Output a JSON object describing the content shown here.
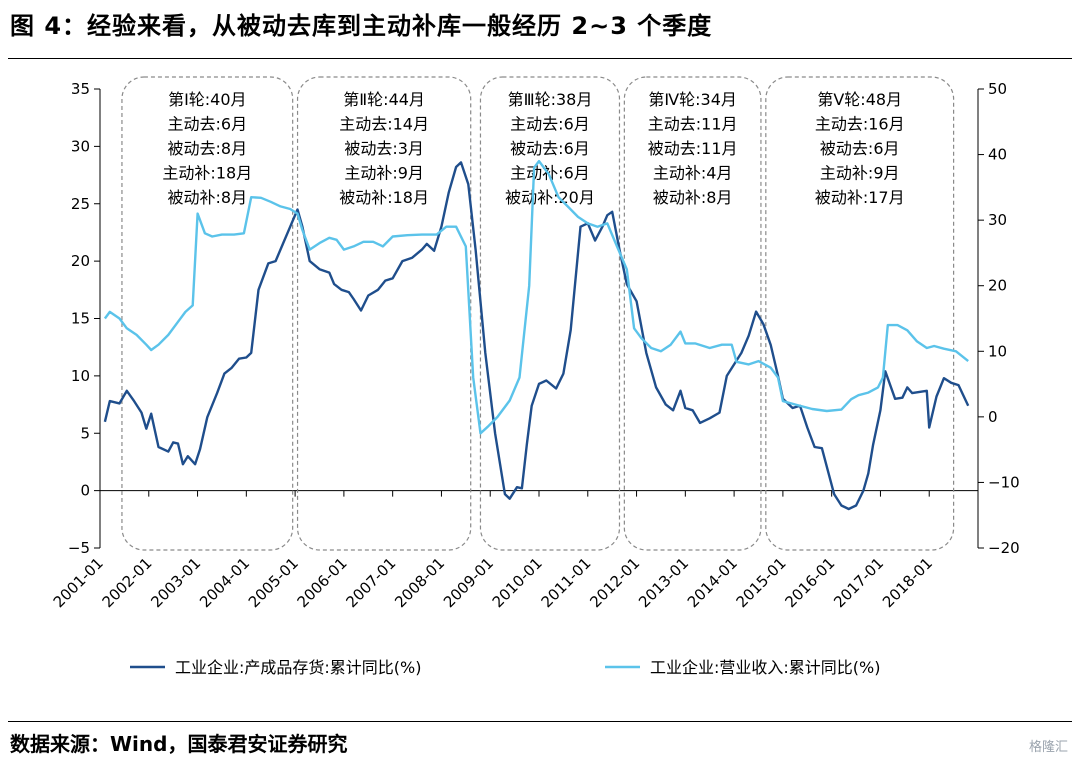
{
  "title": "图 4：经验来看，从被动去库到主动补库一般经历 2~3 个季度",
  "source": "数据来源：Wind，国泰君安证券研究",
  "watermark": "格隆汇",
  "chart_data": {
    "type": "line",
    "x_tick_labels": [
      "2001-01",
      "2002-01",
      "2003-01",
      "2004-01",
      "2005-01",
      "2006-01",
      "2007-01",
      "2008-01",
      "2009-01",
      "2010-01",
      "2011-01",
      "2012-01",
      "2013-01",
      "2014-01",
      "2015-01",
      "2016-01",
      "2017-01",
      "2018-01"
    ],
    "y_left": {
      "min": -5,
      "max": 35,
      "ticks": [
        "35",
        "30",
        "25",
        "20",
        "15",
        "10",
        "5",
        "0",
        "−5"
      ]
    },
    "y_right": {
      "min": -20,
      "max": 50,
      "ticks": [
        "50",
        "40",
        "30",
        "20",
        "10",
        "0",
        "−10",
        "−20"
      ]
    },
    "series": [
      {
        "name": "工业企业:产成品存货:累计同比(%)",
        "axis": "left",
        "color": "#1f4e8c",
        "points": [
          [
            2001.1,
            6
          ],
          [
            2001.2,
            7.8
          ],
          [
            2001.4,
            7.6
          ],
          [
            2001.55,
            8.7
          ],
          [
            2001.7,
            7.8
          ],
          [
            2001.85,
            6.8
          ],
          [
            2001.95,
            5.4
          ],
          [
            2002.05,
            6.7
          ],
          [
            2002.2,
            3.8
          ],
          [
            2002.4,
            3.4
          ],
          [
            2002.5,
            4.2
          ],
          [
            2002.6,
            4.1
          ],
          [
            2002.7,
            2.3
          ],
          [
            2002.8,
            3
          ],
          [
            2002.95,
            2.3
          ],
          [
            2003.05,
            3.6
          ],
          [
            2003.2,
            6.4
          ],
          [
            2003.4,
            8.5
          ],
          [
            2003.55,
            10.2
          ],
          [
            2003.7,
            10.7
          ],
          [
            2003.85,
            11.5
          ],
          [
            2004.0,
            11.6
          ],
          [
            2004.1,
            12
          ],
          [
            2004.25,
            17.5
          ],
          [
            2004.45,
            19.8
          ],
          [
            2004.6,
            20
          ],
          [
            2004.75,
            21.5
          ],
          [
            2004.9,
            23
          ],
          [
            2005.05,
            24.5
          ],
          [
            2005.15,
            23
          ],
          [
            2005.3,
            20
          ],
          [
            2005.5,
            19.3
          ],
          [
            2005.7,
            19
          ],
          [
            2005.8,
            18
          ],
          [
            2005.95,
            17.5
          ],
          [
            2006.1,
            17.3
          ],
          [
            2006.2,
            16.7
          ],
          [
            2006.35,
            15.7
          ],
          [
            2006.5,
            17
          ],
          [
            2006.7,
            17.5
          ],
          [
            2006.85,
            18.3
          ],
          [
            2007.0,
            18.5
          ],
          [
            2007.2,
            20
          ],
          [
            2007.4,
            20.3
          ],
          [
            2007.6,
            21
          ],
          [
            2007.7,
            21.5
          ],
          [
            2007.85,
            20.9
          ],
          [
            2008.0,
            23
          ],
          [
            2008.15,
            26
          ],
          [
            2008.3,
            28.2
          ],
          [
            2008.4,
            28.6
          ],
          [
            2008.55,
            26.7
          ],
          [
            2008.7,
            21
          ],
          [
            2008.9,
            12
          ],
          [
            2009.1,
            5
          ],
          [
            2009.3,
            -0.3
          ],
          [
            2009.4,
            -0.7
          ],
          [
            2009.55,
            0.3
          ],
          [
            2009.65,
            0.2
          ],
          [
            2009.75,
            4
          ],
          [
            2009.85,
            7.4
          ],
          [
            2010.0,
            9.3
          ],
          [
            2010.15,
            9.6
          ],
          [
            2010.35,
            8.9
          ],
          [
            2010.5,
            10.2
          ],
          [
            2010.65,
            14
          ],
          [
            2010.85,
            23
          ],
          [
            2011.0,
            23.3
          ],
          [
            2011.15,
            21.8
          ],
          [
            2011.3,
            23
          ],
          [
            2011.4,
            24
          ],
          [
            2011.5,
            24.3
          ],
          [
            2011.65,
            21
          ],
          [
            2011.8,
            18
          ],
          [
            2012.0,
            16.5
          ],
          [
            2012.2,
            12
          ],
          [
            2012.4,
            9
          ],
          [
            2012.6,
            7.5
          ],
          [
            2012.75,
            7
          ],
          [
            2012.9,
            8.7
          ],
          [
            2013.0,
            7.2
          ],
          [
            2013.15,
            7
          ],
          [
            2013.3,
            5.9
          ],
          [
            2013.5,
            6.3
          ],
          [
            2013.7,
            6.8
          ],
          [
            2013.85,
            10
          ],
          [
            2014.0,
            11
          ],
          [
            2014.15,
            12
          ],
          [
            2014.3,
            13.5
          ],
          [
            2014.45,
            15.6
          ],
          [
            2014.6,
            14.5
          ],
          [
            2014.75,
            12.7
          ],
          [
            2014.9,
            10
          ],
          [
            2015.0,
            8
          ],
          [
            2015.2,
            7.2
          ],
          [
            2015.35,
            7.4
          ],
          [
            2015.5,
            5.5
          ],
          [
            2015.65,
            3.8
          ],
          [
            2015.8,
            3.7
          ],
          [
            2015.95,
            1.3
          ],
          [
            2016.05,
            -0.3
          ],
          [
            2016.2,
            -1.3
          ],
          [
            2016.35,
            -1.6
          ],
          [
            2016.5,
            -1.3
          ],
          [
            2016.65,
            0
          ],
          [
            2016.75,
            1.5
          ],
          [
            2016.85,
            4
          ],
          [
            2017.0,
            7
          ],
          [
            2017.1,
            10.4
          ],
          [
            2017.3,
            8
          ],
          [
            2017.45,
            8.1
          ],
          [
            2017.55,
            9
          ],
          [
            2017.65,
            8.5
          ],
          [
            2017.8,
            8.6
          ],
          [
            2017.95,
            8.7
          ],
          [
            2018.0,
            5.5
          ],
          [
            2018.15,
            8.2
          ],
          [
            2018.3,
            9.8
          ],
          [
            2018.45,
            9.4
          ],
          [
            2018.6,
            9.2
          ],
          [
            2018.8,
            7.4
          ]
        ]
      },
      {
        "name": "工业企业:营业收入:累计同比(%)",
        "axis": "right",
        "color": "#5bc3ea",
        "points": [
          [
            2001.1,
            15
          ],
          [
            2001.2,
            16
          ],
          [
            2001.4,
            15
          ],
          [
            2001.55,
            13.5
          ],
          [
            2001.75,
            12.5
          ],
          [
            2001.95,
            11
          ],
          [
            2002.05,
            10.2
          ],
          [
            2002.2,
            11
          ],
          [
            2002.4,
            12.5
          ],
          [
            2002.6,
            14.5
          ],
          [
            2002.75,
            16
          ],
          [
            2002.9,
            17
          ],
          [
            2003.0,
            31
          ],
          [
            2003.15,
            28
          ],
          [
            2003.3,
            27.5
          ],
          [
            2003.5,
            27.8
          ],
          [
            2003.75,
            27.8
          ],
          [
            2003.95,
            28
          ],
          [
            2004.1,
            33.5
          ],
          [
            2004.3,
            33.4
          ],
          [
            2004.5,
            32.8
          ],
          [
            2004.7,
            32.1
          ],
          [
            2004.9,
            31.7
          ],
          [
            2005.05,
            31
          ],
          [
            2005.15,
            28.5
          ],
          [
            2005.3,
            25.5
          ],
          [
            2005.5,
            26.5
          ],
          [
            2005.7,
            27.3
          ],
          [
            2005.85,
            27
          ],
          [
            2006.0,
            25.5
          ],
          [
            2006.2,
            26
          ],
          [
            2006.4,
            26.7
          ],
          [
            2006.6,
            26.7
          ],
          [
            2006.8,
            26
          ],
          [
            2007.0,
            27.5
          ],
          [
            2007.3,
            27.7
          ],
          [
            2007.6,
            27.8
          ],
          [
            2007.9,
            27.8
          ],
          [
            2008.1,
            29
          ],
          [
            2008.3,
            29
          ],
          [
            2008.5,
            26
          ],
          [
            2008.65,
            6
          ],
          [
            2008.8,
            -2.5
          ],
          [
            2008.95,
            -1.5
          ],
          [
            2009.15,
            0
          ],
          [
            2009.4,
            2.5
          ],
          [
            2009.6,
            6
          ],
          [
            2009.8,
            20
          ],
          [
            2009.9,
            38
          ],
          [
            2010.0,
            39
          ],
          [
            2010.2,
            37
          ],
          [
            2010.4,
            33.5
          ],
          [
            2010.6,
            32
          ],
          [
            2010.8,
            30.5
          ],
          [
            2011.0,
            29.5
          ],
          [
            2011.2,
            29
          ],
          [
            2011.4,
            29.5
          ],
          [
            2011.6,
            26
          ],
          [
            2011.8,
            22.5
          ],
          [
            2011.95,
            13.5
          ],
          [
            2012.1,
            12
          ],
          [
            2012.3,
            10.5
          ],
          [
            2012.5,
            10
          ],
          [
            2012.7,
            11
          ],
          [
            2012.9,
            13
          ],
          [
            2013.0,
            11.2
          ],
          [
            2013.2,
            11.2
          ],
          [
            2013.5,
            10.5
          ],
          [
            2013.75,
            11
          ],
          [
            2013.95,
            11
          ],
          [
            2014.05,
            8.4
          ],
          [
            2014.3,
            8
          ],
          [
            2014.5,
            8.5
          ],
          [
            2014.75,
            7.5
          ],
          [
            2014.9,
            6
          ],
          [
            2015.0,
            2.4
          ],
          [
            2015.3,
            1.8
          ],
          [
            2015.6,
            1.2
          ],
          [
            2015.9,
            0.9
          ],
          [
            2016.2,
            1.1
          ],
          [
            2016.4,
            2.7
          ],
          [
            2016.55,
            3.3
          ],
          [
            2016.75,
            3.7
          ],
          [
            2016.95,
            4.5
          ],
          [
            2017.05,
            6
          ],
          [
            2017.15,
            14
          ],
          [
            2017.35,
            14
          ],
          [
            2017.55,
            13.2
          ],
          [
            2017.75,
            11.5
          ],
          [
            2017.95,
            10.5
          ],
          [
            2018.1,
            10.8
          ],
          [
            2018.3,
            10.4
          ],
          [
            2018.55,
            10
          ],
          [
            2018.8,
            8.5
          ]
        ]
      }
    ],
    "periods": [
      {
        "name": "第Ⅰ轮",
        "total": "40月",
        "active_destock": "6月",
        "passive_destock": "8月",
        "active_restock": "18月",
        "passive_restock": "8月",
        "start": 2001.45,
        "end": 2004.95
      },
      {
        "name": "第Ⅱ轮",
        "total": "44月",
        "active_destock": "14月",
        "passive_destock": "3月",
        "active_restock": "9月",
        "passive_restock": "18月",
        "start": 2005.05,
        "end": 2008.6
      },
      {
        "name": "第Ⅲ轮",
        "total": "38月",
        "active_destock": "6月",
        "passive_destock": "6月",
        "active_restock": "6月",
        "passive_restock": "20月",
        "start": 2008.8,
        "end": 2011.65
      },
      {
        "name": "第Ⅳ轮",
        "total": "34月",
        "active_destock": "11月",
        "passive_destock": "11月",
        "active_restock": "4月",
        "passive_restock": "8月",
        "start": 2011.75,
        "end": 2014.55
      },
      {
        "name": "第Ⅴ轮",
        "total": "48月",
        "active_destock": "16月",
        "passive_destock": "6月",
        "active_restock": "9月",
        "passive_restock": "17月",
        "start": 2014.65,
        "end": 2018.5
      }
    ],
    "labels": {
      "active_destock": "主动去",
      "passive_destock": "被动去",
      "active_restock": "主动补",
      "passive_restock": "被动补"
    }
  }
}
